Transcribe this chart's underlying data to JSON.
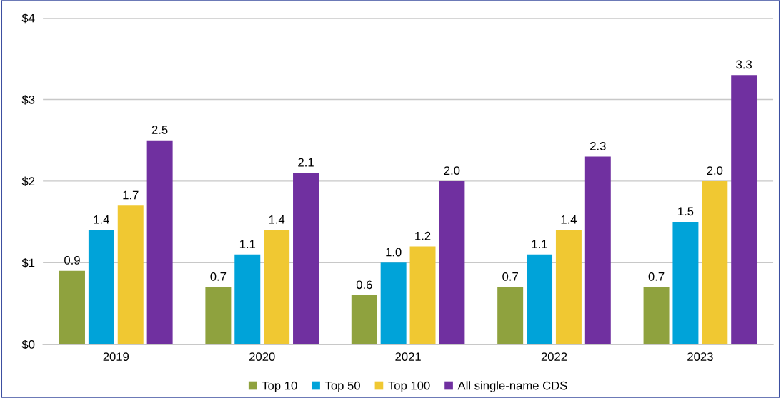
{
  "chart_data": {
    "type": "bar",
    "categories": [
      "2019",
      "2020",
      "2021",
      "2022",
      "2023"
    ],
    "series": [
      {
        "name": "Top 10",
        "color": "#8fa23e",
        "values": [
          0.9,
          0.7,
          0.6,
          0.7,
          0.7
        ],
        "value_labels": [
          "0.9",
          "0.7",
          "0.6",
          "0.7",
          "0.7"
        ]
      },
      {
        "name": "Top 50",
        "color": "#00a3d9",
        "values": [
          1.4,
          1.1,
          1,
          1.1,
          1.5
        ],
        "value_labels": [
          "1.4",
          "1.1",
          "1.0",
          "1.1",
          "1.5"
        ]
      },
      {
        "name": "Top 100",
        "color": "#f0c832",
        "values": [
          1.7,
          1.4,
          1.2,
          1.4,
          2
        ],
        "value_labels": [
          "1.7",
          "1.4",
          "1.2",
          "1.4",
          "2.0"
        ]
      },
      {
        "name": "All single-name CDS",
        "color": "#7030a0",
        "values": [
          2.5,
          2.1,
          2,
          2.3,
          3.3
        ],
        "value_labels": [
          "2.5",
          "2.1",
          "2.0",
          "2.3",
          "3.3"
        ]
      }
    ],
    "ylim": [
      0,
      4
    ],
    "yticks": [
      {
        "value": 0,
        "label": "$0"
      },
      {
        "value": 1,
        "label": "$1"
      },
      {
        "value": 2,
        "label": "$2"
      },
      {
        "value": 3,
        "label": "$3"
      },
      {
        "value": 4,
        "label": "$4"
      }
    ],
    "grid": "y",
    "legend": "bottom"
  }
}
